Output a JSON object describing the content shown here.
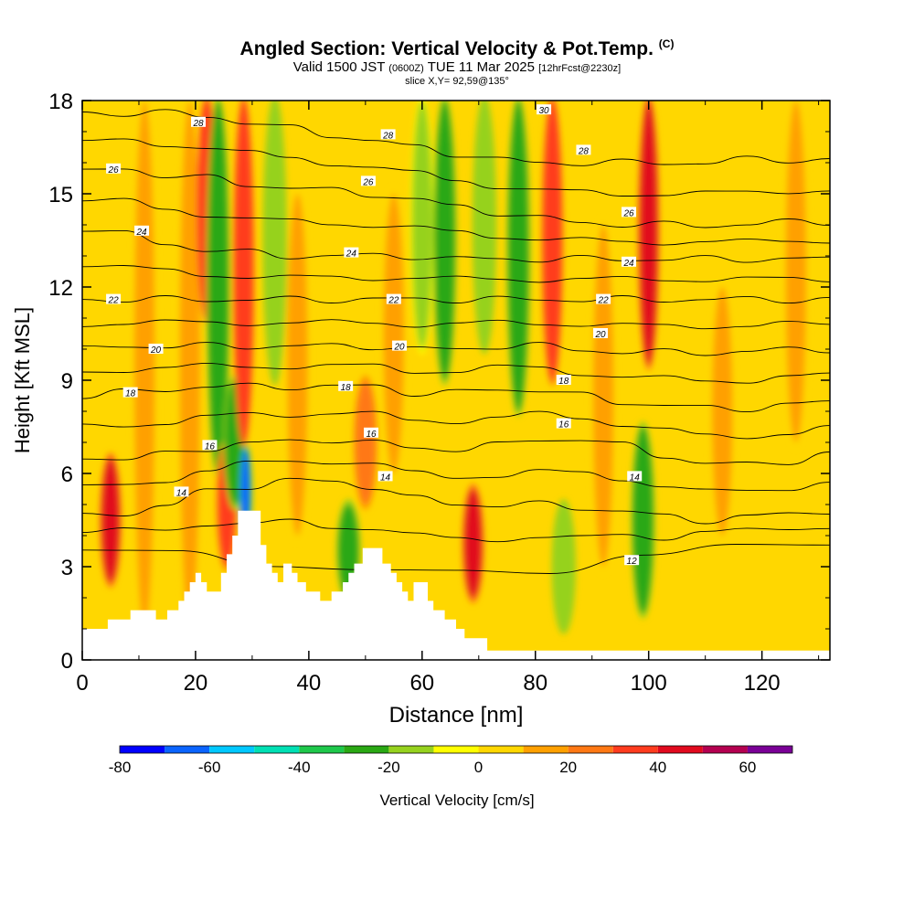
{
  "title": {
    "main": "Angled Section: Vertical Velocity & Pot.Temp.",
    "copyright": "(C)",
    "valid_prefix": "Valid 1500 JST",
    "utc": "(0600Z)",
    "valid_date": "TUE 11 Mar 2025",
    "forecast": "[12hrFcst@2230z]",
    "slice": "slice X,Y= 92,59@135°"
  },
  "chart_data": {
    "type": "heatmap",
    "xlabel": "Distance [nm]",
    "ylabel": "Height [Kft MSL]",
    "xlim": [
      0,
      132
    ],
    "ylim": [
      0,
      18
    ],
    "x_ticks": [
      0,
      20,
      40,
      60,
      80,
      100,
      120
    ],
    "y_ticks": [
      0,
      3,
      6,
      9,
      12,
      15,
      18
    ],
    "background_value": 5,
    "velocity_features": [
      {
        "x": 5,
        "bottom": 2.5,
        "top": 6.5,
        "value": 45
      },
      {
        "x": 11,
        "bottom": 1,
        "top": 18,
        "value": 12
      },
      {
        "x": 19,
        "bottom": 1,
        "top": 18,
        "value": 12
      },
      {
        "x": 22,
        "bottom": 11,
        "top": 18,
        "value": 38
      },
      {
        "x": 24,
        "bottom": 6,
        "top": 18,
        "value": -25
      },
      {
        "x": 25.5,
        "bottom": 3,
        "top": 7,
        "value": 32
      },
      {
        "x": 27,
        "bottom": 5,
        "top": 9,
        "value": -22
      },
      {
        "x": 28.8,
        "bottom": 4,
        "top": 6.8,
        "value": -65
      },
      {
        "x": 28.5,
        "bottom": 7,
        "top": 18,
        "value": 38
      },
      {
        "x": 34,
        "bottom": 9,
        "top": 18,
        "value": -20
      },
      {
        "x": 38,
        "bottom": 4,
        "top": 15,
        "value": 12
      },
      {
        "x": 47,
        "bottom": 2,
        "top": 5,
        "value": -25
      },
      {
        "x": 50,
        "bottom": 5,
        "top": 9,
        "value": 22
      },
      {
        "x": 55,
        "bottom": 6,
        "top": 15,
        "value": 18
      },
      {
        "x": 60,
        "bottom": 10,
        "top": 18,
        "value": -18
      },
      {
        "x": 64,
        "bottom": 9,
        "top": 18,
        "value": -28
      },
      {
        "x": 69,
        "bottom": 2,
        "top": 5.5,
        "value": 40
      },
      {
        "x": 71,
        "bottom": 10,
        "top": 18,
        "value": -20
      },
      {
        "x": 77,
        "bottom": 8,
        "top": 18,
        "value": -22
      },
      {
        "x": 83,
        "bottom": 9,
        "top": 18,
        "value": 38
      },
      {
        "x": 85,
        "bottom": 1,
        "top": 5,
        "value": -20
      },
      {
        "x": 92,
        "bottom": 3,
        "top": 14,
        "value": 18
      },
      {
        "x": 100,
        "bottom": 9.5,
        "top": 18,
        "value": 45
      },
      {
        "x": 99,
        "bottom": 1.5,
        "top": 7.5,
        "value": -28
      },
      {
        "x": 113,
        "bottom": 4,
        "top": 12,
        "value": 12
      },
      {
        "x": 126,
        "bottom": 7,
        "top": 18,
        "value": 15
      }
    ],
    "theta_contours": [
      {
        "level": 12,
        "y": [
          3.6,
          3.4,
          3.1,
          2.9,
          2.8,
          2.9,
          3.3,
          3.7,
          3.8
        ]
      },
      {
        "level": 14,
        "y": [
          4.6,
          4.7,
          5.0,
          5.4,
          5.6,
          5.8,
          5.7,
          5.6,
          5.2,
          5.0,
          5.0,
          5.0,
          4.9,
          4.8,
          4.6,
          4.5,
          4.6,
          4.7,
          4.8
        ]
      },
      {
        "level": 16,
        "y": [
          6.5,
          6.5,
          6.6,
          6.8,
          7.0,
          7.0,
          7.1,
          7.0,
          6.8,
          6.8,
          6.9,
          7.1,
          7.1,
          6.9,
          6.6,
          6.3,
          6.3,
          6.4,
          6.6
        ]
      },
      {
        "level": 18,
        "y": [
          8.5,
          8.6,
          8.7,
          8.8,
          8.8,
          8.8,
          8.8,
          8.8,
          8.6,
          8.6,
          8.7,
          8.7,
          8.5,
          8.3,
          8.2,
          8.1,
          8.1,
          8.2,
          8.3
        ]
      },
      {
        "level": 20,
        "y": [
          10.0,
          10.1,
          10.1,
          10.1,
          10.1,
          10.1,
          10.1,
          10.1,
          10.0,
          10.0,
          10.1,
          10.1,
          10.0,
          9.9,
          9.9,
          9.9,
          9.9,
          10.0,
          10.0
        ]
      },
      {
        "level": 22,
        "y": [
          11.6,
          11.6,
          11.6,
          11.6,
          11.6,
          11.6,
          11.6,
          11.6,
          11.6,
          11.6,
          11.6,
          11.6,
          11.6,
          11.6,
          11.6,
          11.6,
          11.6,
          11.6,
          11.6
        ]
      },
      {
        "level": 24,
        "y": [
          13.9,
          13.7,
          13.4,
          13.2,
          13.1,
          13.0,
          13.0,
          13.0,
          13.0,
          12.9,
          12.9,
          12.9,
          12.9,
          12.9,
          12.9,
          12.9,
          12.9,
          12.9,
          12.9
        ]
      },
      {
        "level": 26,
        "y": [
          15.7,
          15.8,
          15.6,
          15.5,
          15.3,
          15.2,
          15.1,
          15.0,
          14.8,
          14.6,
          14.4,
          14.2,
          14.1,
          14.0,
          14.0,
          14.0,
          14.0,
          14.1,
          14.1
        ]
      },
      {
        "level": 28,
        "y": [
          17.6,
          17.6,
          17.6,
          17.5,
          17.3,
          17.1,
          16.9,
          16.7,
          16.5,
          16.3,
          16.1,
          16.0,
          16.0,
          16.0,
          16.0,
          16.0,
          16.1,
          16.1,
          16.1
        ]
      }
    ],
    "contour_labels": [
      {
        "text": "28",
        "x": 20.5,
        "y": 17.3
      },
      {
        "text": "28",
        "x": 54,
        "y": 16.9
      },
      {
        "text": "30",
        "x": 81.5,
        "y": 17.7
      },
      {
        "text": "28",
        "x": 88.5,
        "y": 16.4
      },
      {
        "text": "26",
        "x": 5.5,
        "y": 15.8
      },
      {
        "text": "26",
        "x": 50.5,
        "y": 15.4
      },
      {
        "text": "26",
        "x": 96.5,
        "y": 14.4
      },
      {
        "text": "24",
        "x": 10.5,
        "y": 13.8
      },
      {
        "text": "24",
        "x": 47.5,
        "y": 13.1
      },
      {
        "text": "24",
        "x": 96.5,
        "y": 12.8
      },
      {
        "text": "22",
        "x": 5.5,
        "y": 11.6
      },
      {
        "text": "22",
        "x": 55,
        "y": 11.6
      },
      {
        "text": "22",
        "x": 92,
        "y": 11.6
      },
      {
        "text": "20",
        "x": 13,
        "y": 10.0
      },
      {
        "text": "20",
        "x": 56,
        "y": 10.1
      },
      {
        "text": "20",
        "x": 91.5,
        "y": 10.5
      },
      {
        "text": "18",
        "x": 8.5,
        "y": 8.6
      },
      {
        "text": "18",
        "x": 46.5,
        "y": 8.8
      },
      {
        "text": "18",
        "x": 85,
        "y": 9.0
      },
      {
        "text": "16",
        "x": 22.5,
        "y": 6.9
      },
      {
        "text": "16",
        "x": 51,
        "y": 7.3
      },
      {
        "text": "16",
        "x": 85,
        "y": 7.6
      },
      {
        "text": "14",
        "x": 17.5,
        "y": 5.4
      },
      {
        "text": "14",
        "x": 53.5,
        "y": 5.9
      },
      {
        "text": "14",
        "x": 97.5,
        "y": 5.9
      },
      {
        "text": "12",
        "x": 97,
        "y": 3.2
      }
    ],
    "terrain": [
      [
        0,
        1
      ],
      [
        4.5,
        1
      ],
      [
        4.5,
        1.3
      ],
      [
        8.5,
        1.3
      ],
      [
        8.5,
        1.6
      ],
      [
        13,
        1.6
      ],
      [
        13,
        1.3
      ],
      [
        15,
        1.3
      ],
      [
        15,
        1.6
      ],
      [
        17,
        1.6
      ],
      [
        17,
        1.9
      ],
      [
        18,
        1.9
      ],
      [
        18,
        2.2
      ],
      [
        19,
        2.2
      ],
      [
        19,
        2.5
      ],
      [
        20,
        2.5
      ],
      [
        20,
        2.8
      ],
      [
        21,
        2.8
      ],
      [
        21,
        2.5
      ],
      [
        22,
        2.5
      ],
      [
        22,
        2.2
      ],
      [
        24.5,
        2.2
      ],
      [
        24.5,
        2.8
      ],
      [
        25.5,
        2.8
      ],
      [
        25.5,
        3.4
      ],
      [
        26.5,
        3.4
      ],
      [
        26.5,
        4.0
      ],
      [
        27.5,
        4.0
      ],
      [
        27.5,
        4.8
      ],
      [
        31.5,
        4.8
      ],
      [
        31.5,
        3.7
      ],
      [
        32.5,
        3.7
      ],
      [
        32.5,
        3.1
      ],
      [
        33.5,
        3.1
      ],
      [
        33.5,
        2.8
      ],
      [
        34.5,
        2.8
      ],
      [
        34.5,
        2.5
      ],
      [
        35.5,
        2.5
      ],
      [
        35.5,
        3.1
      ],
      [
        37,
        3.1
      ],
      [
        37,
        2.8
      ],
      [
        38,
        2.8
      ],
      [
        38,
        2.5
      ],
      [
        39.5,
        2.5
      ],
      [
        39.5,
        2.2
      ],
      [
        42,
        2.2
      ],
      [
        42,
        1.9
      ],
      [
        44,
        1.9
      ],
      [
        44,
        2.2
      ],
      [
        46,
        2.2
      ],
      [
        46,
        2.5
      ],
      [
        47,
        2.5
      ],
      [
        47,
        2.8
      ],
      [
        48,
        2.8
      ],
      [
        48,
        3.1
      ],
      [
        49.5,
        3.1
      ],
      [
        49.5,
        3.6
      ],
      [
        53,
        3.6
      ],
      [
        53,
        3.1
      ],
      [
        54.5,
        3.1
      ],
      [
        54.5,
        2.8
      ],
      [
        55.5,
        2.8
      ],
      [
        55.5,
        2.5
      ],
      [
        56.5,
        2.5
      ],
      [
        56.5,
        2.2
      ],
      [
        57.5,
        2.2
      ],
      [
        57.5,
        1.9
      ],
      [
        58.5,
        1.9
      ],
      [
        58.5,
        2.2
      ],
      [
        58.5,
        2.2
      ],
      [
        58.5,
        2.5
      ],
      [
        61,
        2.5
      ],
      [
        61,
        1.9
      ],
      [
        62,
        1.9
      ],
      [
        62,
        1.6
      ],
      [
        64,
        1.6
      ],
      [
        64,
        1.3
      ],
      [
        66,
        1.3
      ],
      [
        66,
        1.0
      ],
      [
        67.5,
        1.0
      ],
      [
        67.5,
        0.7
      ],
      [
        71.5,
        0.7
      ],
      [
        71.5,
        0.3
      ],
      [
        132,
        0.3
      ],
      [
        132,
        0
      ],
      [
        0,
        0
      ]
    ],
    "colorbar": {
      "label": "Vertical Velocity [cm/s]",
      "ticks": [
        -80,
        -60,
        -40,
        -20,
        0,
        20,
        40,
        60
      ],
      "bins": [
        -80,
        -70,
        -60,
        -50,
        -40,
        -30,
        -20,
        -10,
        0,
        10,
        20,
        30,
        40,
        50,
        60,
        70
      ],
      "colors": [
        "#0000ff",
        "#0a64ff",
        "#00c8ff",
        "#00e0b4",
        "#1ec84b",
        "#2aa814",
        "#96d21e",
        "#ffff00",
        "#ffd700",
        "#ffa000",
        "#ff7814",
        "#ff3c1e",
        "#e10a1e",
        "#b40050",
        "#7a0096"
      ]
    }
  }
}
